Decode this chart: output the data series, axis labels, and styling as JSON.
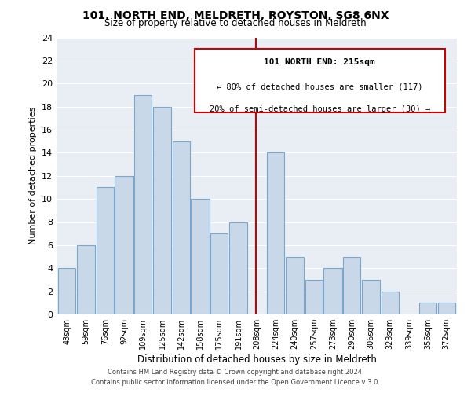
{
  "title": "101, NORTH END, MELDRETH, ROYSTON, SG8 6NX",
  "subtitle": "Size of property relative to detached houses in Meldreth",
  "xlabel": "Distribution of detached houses by size in Meldreth",
  "ylabel": "Number of detached properties",
  "footer_line1": "Contains HM Land Registry data © Crown copyright and database right 2024.",
  "footer_line2": "Contains public sector information licensed under the Open Government Licence v 3.0.",
  "bin_labels": [
    "43sqm",
    "59sqm",
    "76sqm",
    "92sqm",
    "109sqm",
    "125sqm",
    "142sqm",
    "158sqm",
    "175sqm",
    "191sqm",
    "208sqm",
    "224sqm",
    "240sqm",
    "257sqm",
    "273sqm",
    "290sqm",
    "306sqm",
    "323sqm",
    "339sqm",
    "356sqm",
    "372sqm"
  ],
  "bar_heights": [
    4,
    6,
    11,
    12,
    19,
    18,
    15,
    10,
    7,
    8,
    0,
    14,
    5,
    3,
    4,
    5,
    3,
    2,
    0,
    1,
    1
  ],
  "bar_color": "#c8d8e8",
  "bar_edge_color": "#7aa8cc",
  "annotation_title": "101 NORTH END: 215sqm",
  "annotation_line1": "← 80% of detached houses are smaller (117)",
  "annotation_line2": "20% of semi-detached houses are larger (30) →",
  "vline_x": 215,
  "vline_color": "#cc0000",
  "ylim": [
    0,
    24
  ],
  "yticks": [
    0,
    2,
    4,
    6,
    8,
    10,
    12,
    14,
    16,
    18,
    20,
    22,
    24
  ],
  "bin_edges": [
    43,
    59,
    76,
    92,
    109,
    125,
    142,
    158,
    175,
    191,
    208,
    224,
    240,
    257,
    273,
    290,
    306,
    323,
    339,
    356,
    372,
    388
  ],
  "bg_color": "#e8eef4",
  "grid_color": "#ffffff"
}
